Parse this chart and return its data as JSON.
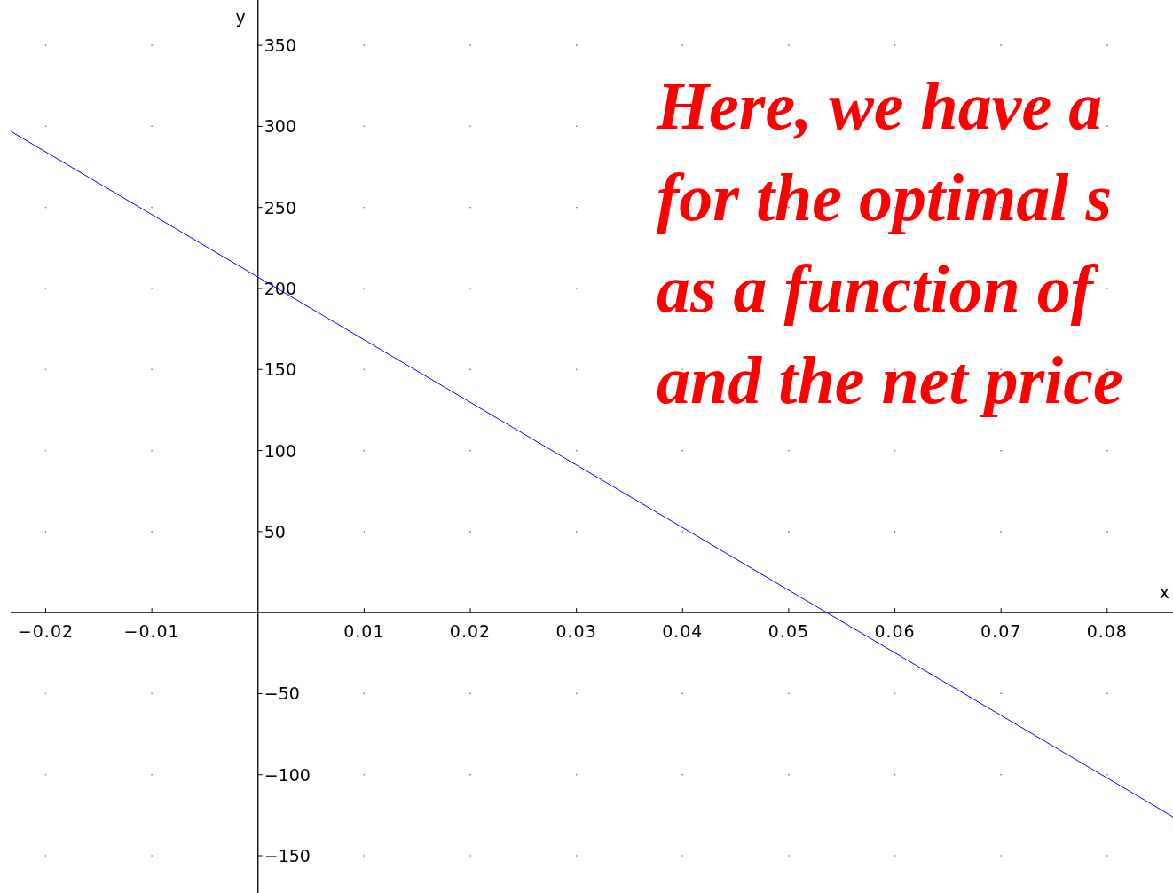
{
  "chart_data": {
    "type": "line",
    "xlabel": "x",
    "ylabel": "y",
    "xlim": [
      -0.0233,
      0.0862
    ],
    "ylim": [
      -173,
      378
    ],
    "xticks": [
      -0.02,
      -0.01,
      0.01,
      0.02,
      0.03,
      0.04,
      0.05,
      0.06,
      0.07,
      0.08
    ],
    "yticks": [
      -150,
      -100,
      -50,
      50,
      100,
      150,
      200,
      250,
      300,
      350
    ],
    "grid": true,
    "marker": "none",
    "line_style": "solid",
    "series": [
      {
        "color": "#0000ff",
        "x": [
          -0.0233,
          0.0862
        ],
        "values": [
          297,
          -126
        ]
      }
    ],
    "annotations": [
      "Here, we have a",
      "for the optimal s",
      "as a function of",
      "and the net price"
    ]
  }
}
